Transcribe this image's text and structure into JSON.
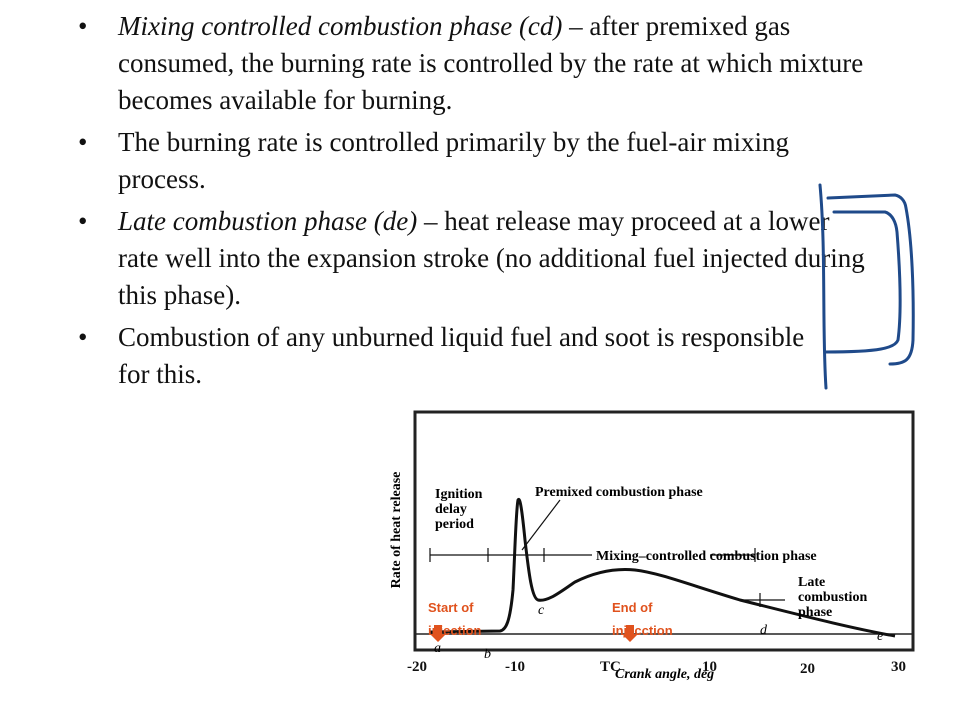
{
  "bullets": [
    {
      "marker": "•",
      "italic": "Mixing controlled combustion phase (cd)",
      "normal": " – after premixed gas consumed, the burning rate is controlled by the rate at which mixture becomes available for burning."
    },
    {
      "marker": "•",
      "italic": "",
      "normal": "The burning rate is controlled primarily by the fuel-air mixing process."
    },
    {
      "marker": "•",
      "italic": "Late combustion phase (de) –",
      "normal": " heat release may proceed at a lower rate well into the expansion stroke (no additional fuel injected during this phase)."
    },
    {
      "marker": "•",
      "italic": "",
      "normal": "Combustion of any unburned liquid fuel and soot is responsible for this."
    }
  ],
  "figure": {
    "ylabel": "Rate of heat release",
    "xlabel": "Crank angle, deg",
    "labels": {
      "ignition1": "Ignition",
      "ignition2": "delay",
      "ignition3": "period",
      "premixed": "Premixed combustion phase",
      "mixing": "Mixing–controlled combustion phase",
      "late1": "Late",
      "late2": "combustion",
      "late3": "phase",
      "a": "a",
      "b": "b",
      "c": "c",
      "d": "d",
      "e": "e"
    },
    "ticks": [
      "-20",
      "-10",
      "TC",
      "10",
      "20",
      "30"
    ],
    "start_label1": "Start of",
    "start_label2": "injection",
    "end_label1": "End of",
    "end_label2": "injecction",
    "accent_color": "#e0521d",
    "bracket_color": "#1f4a8a"
  }
}
